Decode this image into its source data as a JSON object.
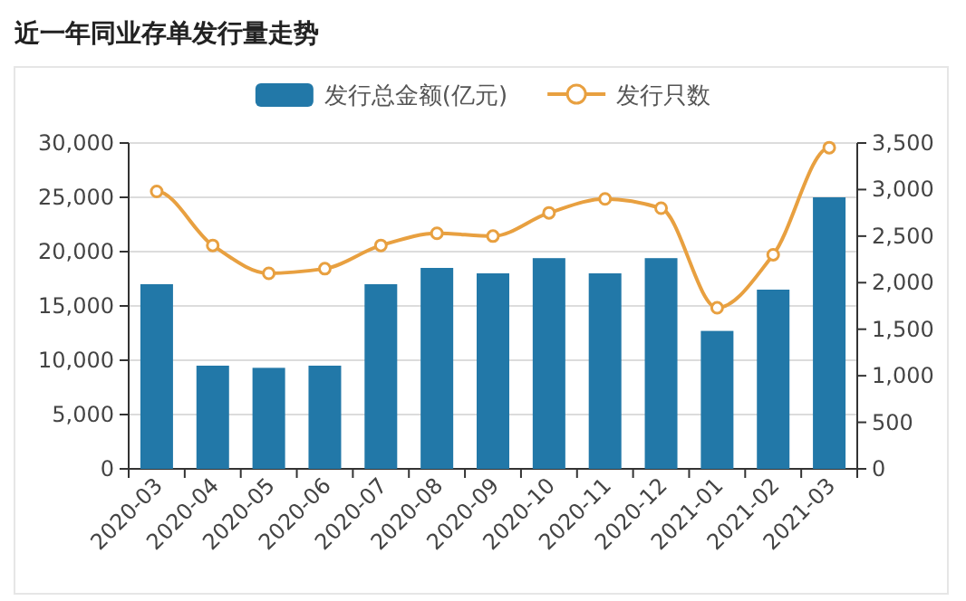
{
  "chart_data": {
    "type": "bar",
    "title": "近一年同业存单发行量走势",
    "categories": [
      "2020-03",
      "2020-04",
      "2020-05",
      "2020-06",
      "2020-07",
      "2020-08",
      "2020-09",
      "2020-10",
      "2020-11",
      "2020-12",
      "2021-01",
      "2021-02",
      "2021-03"
    ],
    "series": [
      {
        "name": "发行总金额(亿元)",
        "color": "#2278a8",
        "values": [
          17000,
          9500,
          9300,
          9500,
          17000,
          18500,
          18000,
          19400,
          18000,
          19400,
          12700,
          16500,
          25000
        ]
      },
      {
        "name": "发行只数",
        "type": "line",
        "axis": "y2",
        "color": "#e8a040",
        "marker": "circle",
        "values": [
          2980,
          2400,
          2100,
          2150,
          2400,
          2530,
          2500,
          2750,
          2900,
          2800,
          1730,
          2300,
          3450
        ]
      }
    ],
    "ylim": [
      0,
      30000
    ],
    "yticks": [
      {
        "value": 0,
        "label": "0"
      },
      {
        "value": 5000,
        "label": "5,000"
      },
      {
        "value": 10000,
        "label": "10,000"
      },
      {
        "value": 15000,
        "label": "15,000"
      },
      {
        "value": 20000,
        "label": "20,000"
      },
      {
        "value": 25000,
        "label": "25,000"
      },
      {
        "value": 30000,
        "label": "30,000"
      }
    ],
    "y2lim": [
      0,
      3500
    ],
    "y2ticks": [
      {
        "value": 0,
        "label": "0"
      },
      {
        "value": 500,
        "label": "500"
      },
      {
        "value": 1000,
        "label": "1,000"
      },
      {
        "value": 1500,
        "label": "1,500"
      },
      {
        "value": 2000,
        "label": "2,000"
      },
      {
        "value": 2500,
        "label": "2,500"
      },
      {
        "value": 3000,
        "label": "3,000"
      },
      {
        "value": 3500,
        "label": "3,500"
      }
    ],
    "grid": "y",
    "legend": "top"
  }
}
